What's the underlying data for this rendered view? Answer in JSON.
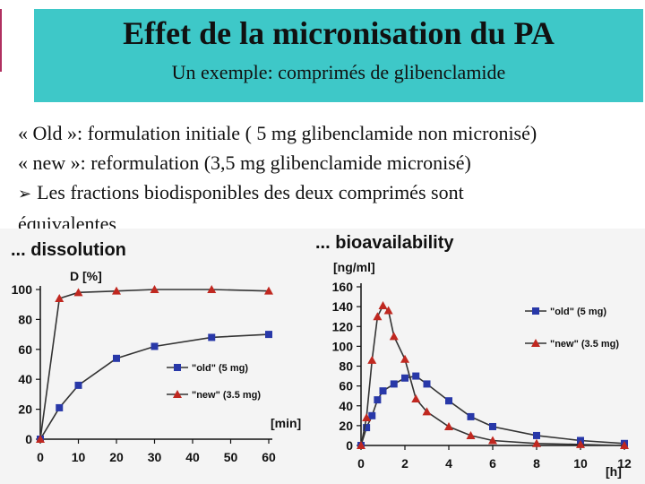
{
  "slide": {
    "title": "Effet de la micronisation du PA",
    "subtitle": "Un exemple: comprimés de glibenclamide",
    "lines": [
      "« Old »: formulation initiale ( 5 mg glibenclamide non micronisé)",
      "« new »: reformulation (3,5 mg glibenclamide micronisé)",
      "Les fractions biodisponibles des deux comprimés sont",
      "équivalentes"
    ],
    "bullet_icon": "arrowhead-bullet-icon"
  },
  "colors": {
    "banner": "#3ec8c8",
    "old_series": "#2838a8",
    "new_series": "#c02820",
    "line": "#333333"
  },
  "chart_data": [
    {
      "type": "line",
      "title": "... dissolution",
      "ylabel": "D [%]",
      "xlabel": "[min]",
      "xlim": [
        0,
        60
      ],
      "ylim": [
        0,
        100
      ],
      "xticks": [
        0,
        10,
        20,
        30,
        40,
        50,
        60
      ],
      "yticks": [
        0,
        20,
        40,
        60,
        80,
        100
      ],
      "legend_position": "center-right",
      "series": [
        {
          "name": "\"old\" (5 mg)",
          "marker": "square",
          "x": [
            0,
            5,
            10,
            20,
            30,
            45,
            60
          ],
          "y": [
            0,
            21,
            36,
            54,
            62,
            68,
            70
          ]
        },
        {
          "name": "\"new\" (3.5 mg)",
          "marker": "triangle",
          "x": [
            0,
            5,
            10,
            20,
            30,
            45,
            60
          ],
          "y": [
            0,
            94,
            98,
            99,
            100,
            100,
            99
          ]
        }
      ]
    },
    {
      "type": "line",
      "title": "... bioavailability",
      "ylabel": "[ng/ml]",
      "xlabel": "[h]",
      "xlim": [
        0,
        12
      ],
      "ylim": [
        0,
        160
      ],
      "xticks": [
        0,
        2,
        4,
        6,
        8,
        10,
        12
      ],
      "yticks": [
        0,
        20,
        40,
        60,
        80,
        100,
        120,
        140,
        160
      ],
      "legend_position": "top-right",
      "series": [
        {
          "name": "\"old\" (5 mg)",
          "marker": "square",
          "x": [
            0,
            0.25,
            0.5,
            0.75,
            1,
            1.5,
            2,
            2.5,
            3,
            4,
            5,
            6,
            8,
            10,
            12
          ],
          "y": [
            0,
            18,
            30,
            46,
            55,
            62,
            68,
            70,
            62,
            45,
            29,
            19,
            10,
            5,
            2
          ]
        },
        {
          "name": "\"new\" (3.5 mg)",
          "marker": "triangle",
          "x": [
            0,
            0.25,
            0.5,
            0.75,
            1,
            1.25,
            1.5,
            2,
            2.5,
            3,
            4,
            5,
            6,
            8,
            10,
            12
          ],
          "y": [
            0,
            28,
            86,
            130,
            141,
            136,
            110,
            87,
            47,
            34,
            19,
            10,
            5,
            2,
            1,
            0
          ]
        }
      ]
    }
  ]
}
